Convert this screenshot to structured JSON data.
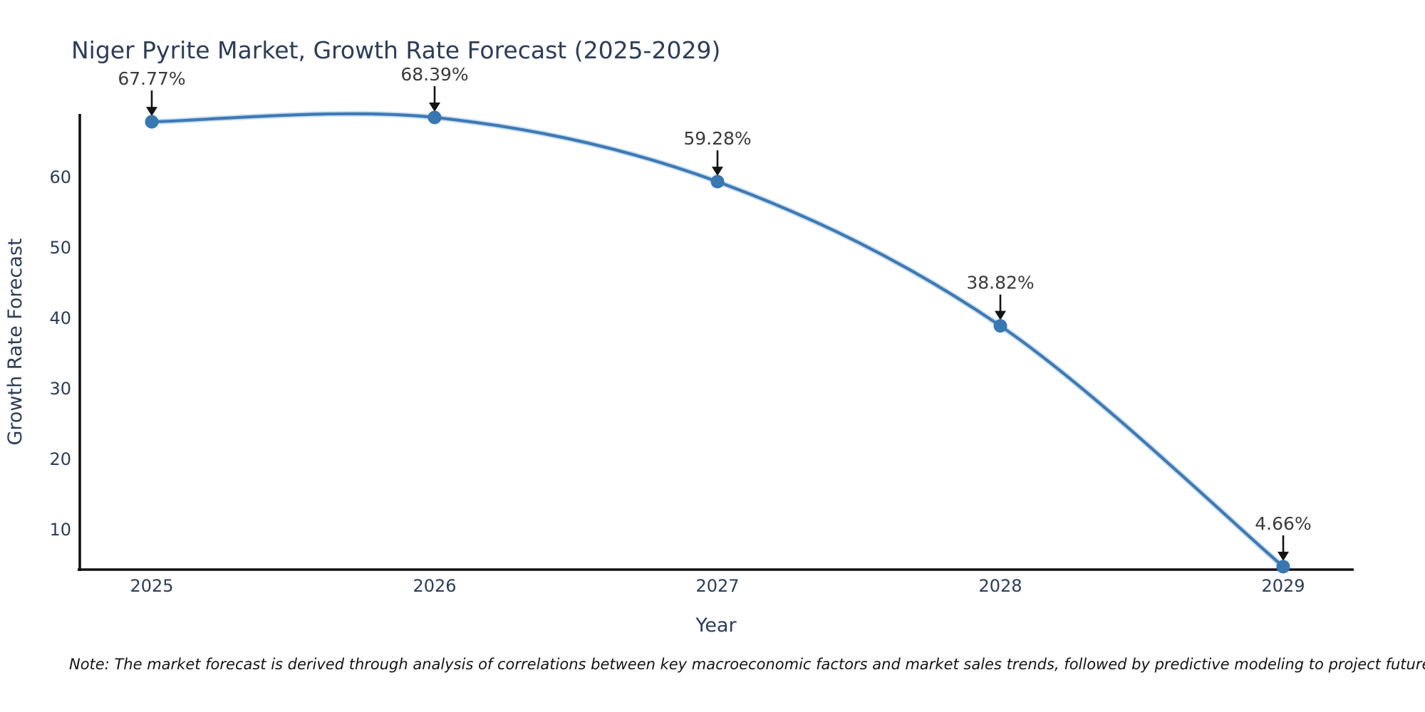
{
  "chart_data": {
    "type": "line",
    "title": "Niger Pyrite Market, Growth Rate Forecast (2025-2029)",
    "xlabel": "Year",
    "ylabel": "Growth Rate Forecast",
    "x": [
      "2025",
      "2026",
      "2027",
      "2028",
      "2029"
    ],
    "series": [
      {
        "name": "Growth Rate Forecast",
        "values": [
          67.77,
          68.39,
          59.28,
          38.82,
          4.66
        ],
        "point_labels": [
          "67.77%",
          "68.39%",
          "59.28%",
          "38.82%",
          "4.66%"
        ]
      }
    ],
    "yticks": [
      10,
      20,
      30,
      40,
      50,
      60
    ],
    "ylim": [
      4.2,
      69.0
    ],
    "line_shape": "spline",
    "grid": false,
    "legend": "none",
    "annotations": "value labels with black arrows above each point",
    "colors": {
      "line": "#3d7ab5",
      "line_halo": "#8db9dd",
      "marker": "#3778b2",
      "axis": "#111111",
      "chart_text": "#2b3d59",
      "annotation_text": "#3a3a3a",
      "arrow": "#141414",
      "note_text": "#141414",
      "background": "#ffffff"
    },
    "note": "Note: The market forecast is derived through analysis of correlations between key macroeconomic factors and market sales trends, followed by predictive modeling to project future sales"
  }
}
